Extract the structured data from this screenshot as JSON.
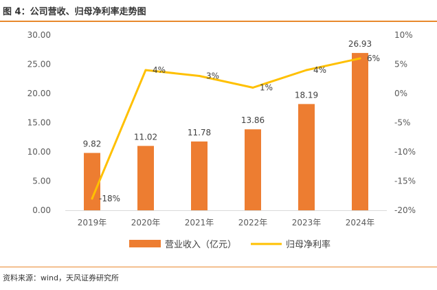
{
  "figure_title": "图 4：公司营收、归母净利率走势图",
  "source": "资料来源：wind，天风证券研究所",
  "colors": {
    "bar": "#ed7d31",
    "line": "#ffc000",
    "accent": "#e8882c"
  },
  "chart_data": {
    "type": "bar+line",
    "categories": [
      "2019年",
      "2020年",
      "2021年",
      "2022年",
      "2023年",
      "2024年"
    ],
    "series": [
      {
        "name": "营业收入（亿元）",
        "type": "bar",
        "axis": "left",
        "values": [
          9.82,
          11.02,
          11.78,
          13.86,
          18.19,
          26.93
        ],
        "labels": [
          "9.82",
          "11.02",
          "11.78",
          "13.86",
          "18.19",
          "26.93"
        ]
      },
      {
        "name": "归母净利率",
        "type": "line",
        "axis": "right",
        "values": [
          -18,
          4,
          3,
          1,
          4,
          6
        ],
        "labels": [
          "-18%",
          "4%",
          "3%",
          "1%",
          "4%",
          "6%"
        ]
      }
    ],
    "y_left": {
      "min": 0,
      "max": 30,
      "ticks": [
        "0.00",
        "5.00",
        "10.00",
        "15.00",
        "20.00",
        "25.00",
        "30.00"
      ]
    },
    "y_right": {
      "min": -20,
      "max": 10,
      "ticks": [
        "-20%",
        "-15%",
        "-10%",
        "-5%",
        "0%",
        "5%",
        "10%"
      ]
    },
    "legend": {
      "position": "bottom"
    }
  }
}
